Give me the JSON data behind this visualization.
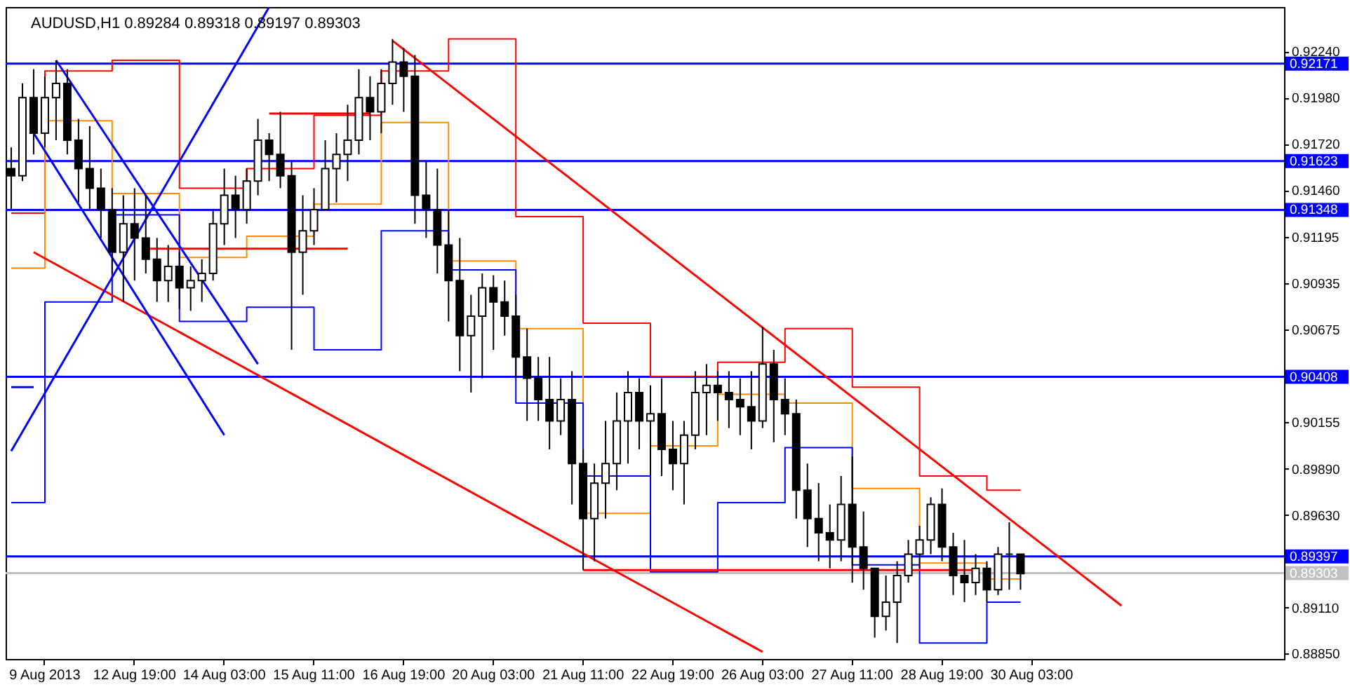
{
  "chart_data": {
    "type": "candlestick",
    "title": "AUDUSD,H1  0.89284 0.89318 0.89197 0.89303",
    "categories": [
      null,
      null,
      null,
      "9 Aug 2013",
      null,
      null,
      null,
      null,
      null,
      null,
      null,
      "12 Aug 19:00",
      null,
      null,
      null,
      null,
      null,
      null,
      null,
      "14 Aug 03:00",
      null,
      null,
      null,
      null,
      null,
      null,
      null,
      "15 Aug 11:00",
      null,
      null,
      null,
      null,
      null,
      null,
      null,
      "16 Aug 19:00",
      null,
      null,
      null,
      null,
      null,
      null,
      null,
      "20 Aug 03:00",
      null,
      null,
      null,
      null,
      null,
      null,
      null,
      "21 Aug 11:00",
      null,
      null,
      null,
      null,
      null,
      null,
      null,
      "22 Aug 19:00",
      null,
      null,
      null,
      null,
      null,
      null,
      null,
      "26 Aug 03:00",
      null,
      null,
      null,
      null,
      null,
      null,
      null,
      "27 Aug 11:00",
      null,
      null,
      null,
      null,
      null,
      null,
      null,
      "28 Aug 19:00",
      null,
      null,
      null,
      null,
      null,
      null,
      null,
      "30 Aug 03:00",
      null,
      null,
      null,
      null,
      null,
      null,
      null,
      null,
      null,
      null,
      null,
      null,
      null,
      null,
      null,
      null,
      null,
      null,
      null,
      null,
      null,
      null
    ],
    "ohlc": [
      [
        0.9158,
        0.917,
        0.9135,
        0.9154
      ],
      [
        0.9154,
        0.9206,
        0.9151,
        0.9198
      ],
      [
        0.9198,
        0.9214,
        0.9166,
        0.9178
      ],
      [
        0.9178,
        0.921,
        0.917,
        0.9198
      ],
      [
        0.9198,
        0.9219,
        0.9174,
        0.9206
      ],
      [
        0.9206,
        0.9214,
        0.9166,
        0.9174
      ],
      [
        0.9174,
        0.9186,
        0.9139,
        0.9158
      ],
      [
        0.9158,
        0.9182,
        0.9135,
        0.9147
      ],
      [
        0.9147,
        0.9158,
        0.9119,
        0.9135
      ],
      [
        0.9135,
        0.9147,
        0.9099,
        0.9111
      ],
      [
        0.9111,
        0.9143,
        0.9083,
        0.9127
      ],
      [
        0.9127,
        0.9147,
        0.9095,
        0.9119
      ],
      [
        0.9119,
        0.9143,
        0.9099,
        0.9107
      ],
      [
        0.9107,
        0.9119,
        0.9083,
        0.9095
      ],
      [
        0.9095,
        0.9115,
        0.9083,
        0.9103
      ],
      [
        0.9103,
        0.9111,
        0.9079,
        0.9091
      ],
      [
        0.9091,
        0.9103,
        0.9078,
        0.9095
      ],
      [
        0.9095,
        0.9107,
        0.9083,
        0.9099
      ],
      [
        0.9099,
        0.9135,
        0.9095,
        0.9127
      ],
      [
        0.9127,
        0.9158,
        0.9115,
        0.9143
      ],
      [
        0.9143,
        0.9154,
        0.9119,
        0.9135
      ],
      [
        0.9135,
        0.9158,
        0.9127,
        0.9151
      ],
      [
        0.9151,
        0.9186,
        0.9143,
        0.9174
      ],
      [
        0.9174,
        0.9178,
        0.9151,
        0.9166
      ],
      [
        0.9166,
        0.919,
        0.9147,
        0.9154
      ],
      [
        0.9154,
        0.9162,
        0.9056,
        0.9111
      ],
      [
        0.9111,
        0.9143,
        0.9087,
        0.9123
      ],
      [
        0.9123,
        0.9147,
        0.9115,
        0.9135
      ],
      [
        0.9135,
        0.9174,
        0.9135,
        0.9158
      ],
      [
        0.9158,
        0.9178,
        0.9139,
        0.9166
      ],
      [
        0.9166,
        0.9194,
        0.9151,
        0.9174
      ],
      [
        0.9174,
        0.9214,
        0.9166,
        0.9198
      ],
      [
        0.9198,
        0.921,
        0.9174,
        0.919
      ],
      [
        0.919,
        0.9214,
        0.9178,
        0.9206
      ],
      [
        0.9206,
        0.9231,
        0.9194,
        0.9218
      ],
      [
        0.9218,
        0.9226,
        0.919,
        0.921
      ],
      [
        0.921,
        0.9222,
        0.9127,
        0.9143
      ],
      [
        0.9143,
        0.9162,
        0.9119,
        0.9135
      ],
      [
        0.9135,
        0.9158,
        0.9099,
        0.9115
      ],
      [
        0.9115,
        0.9135,
        0.9072,
        0.9095
      ],
      [
        0.9095,
        0.9119,
        0.9044,
        0.9064
      ],
      [
        0.9064,
        0.9087,
        0.9032,
        0.9075
      ],
      [
        0.9075,
        0.9099,
        0.904,
        0.9091
      ],
      [
        0.9091,
        0.9098,
        0.9056,
        0.9083
      ],
      [
        0.9083,
        0.9095,
        0.9064,
        0.9075
      ],
      [
        0.9075,
        0.9087,
        0.904,
        0.9052
      ],
      [
        0.9052,
        0.9068,
        0.9016,
        0.904
      ],
      [
        0.904,
        0.9052,
        0.9016,
        0.9028
      ],
      [
        0.9028,
        0.9052,
        0.9,
        0.9016
      ],
      [
        0.9016,
        0.904,
        0.9008,
        0.9028
      ],
      [
        0.9028,
        0.9044,
        0.8969,
        0.8992
      ],
      [
        0.8992,
        0.9,
        0.8932,
        0.8961
      ],
      [
        0.8961,
        0.8992,
        0.8937,
        0.8981
      ],
      [
        0.8981,
        0.9016,
        0.8961,
        0.8992
      ],
      [
        0.8992,
        0.9032,
        0.8977,
        0.9016
      ],
      [
        0.9016,
        0.9044,
        0.8992,
        0.9032
      ],
      [
        0.9032,
        0.904,
        0.9,
        0.9016
      ],
      [
        0.9016,
        0.9036,
        0.8985,
        0.902
      ],
      [
        0.902,
        0.904,
        0.8985,
        0.9
      ],
      [
        0.9,
        0.9016,
        0.8977,
        0.8992
      ],
      [
        0.8992,
        0.9016,
        0.8969,
        0.9008
      ],
      [
        0.9008,
        0.9044,
        0.9,
        0.9032
      ],
      [
        0.9032,
        0.9048,
        0.9008,
        0.9036
      ],
      [
        0.9036,
        0.9044,
        0.9016,
        0.9032
      ],
      [
        0.9032,
        0.9044,
        0.9012,
        0.9028
      ],
      [
        0.9028,
        0.904,
        0.9008,
        0.9024
      ],
      [
        0.9024,
        0.9044,
        0.9,
        0.9016
      ],
      [
        0.9016,
        0.9069,
        0.9012,
        0.9048
      ],
      [
        0.9048,
        0.9056,
        0.9004,
        0.9028
      ],
      [
        0.9028,
        0.904,
        0.9008,
        0.902
      ],
      [
        0.902,
        0.9028,
        0.8961,
        0.8977
      ],
      [
        0.8977,
        0.8992,
        0.8945,
        0.8961
      ],
      [
        0.8961,
        0.8981,
        0.8937,
        0.8953
      ],
      [
        0.8953,
        0.8969,
        0.8933,
        0.8949
      ],
      [
        0.8949,
        0.8985,
        0.8937,
        0.8969
      ],
      [
        0.8969,
        0.8996,
        0.8925,
        0.8945
      ],
      [
        0.8945,
        0.8965,
        0.8921,
        0.8933
      ],
      [
        0.8933,
        0.8933,
        0.8894,
        0.8906
      ],
      [
        0.8906,
        0.8929,
        0.8898,
        0.8914
      ],
      [
        0.8914,
        0.8937,
        0.8891,
        0.8929
      ],
      [
        0.8929,
        0.8949,
        0.8925,
        0.8941
      ],
      [
        0.8941,
        0.8957,
        0.8933,
        0.8949
      ],
      [
        0.8949,
        0.8973,
        0.8941,
        0.8969
      ],
      [
        0.8969,
        0.8978,
        0.8937,
        0.8945
      ],
      [
        0.8945,
        0.8953,
        0.8918,
        0.8929
      ],
      [
        0.8929,
        0.8949,
        0.8914,
        0.8925
      ],
      [
        0.8925,
        0.8941,
        0.8918,
        0.8933
      ],
      [
        0.8933,
        0.8937,
        0.8914,
        0.8921
      ],
      [
        0.8921,
        0.8945,
        0.8918,
        0.8941
      ],
      [
        0.8941,
        0.8959,
        0.8921,
        0.8941
      ],
      [
        0.8941,
        0.8941,
        0.8921,
        0.893
      ],
      null,
      null,
      null,
      null,
      null,
      null,
      null,
      null,
      null,
      null,
      null,
      null,
      null,
      null,
      null,
      null,
      null,
      null,
      null,
      null,
      null,
      null,
      null
    ],
    "series": [
      {
        "type": "step",
        "color": "#ff0000",
        "values": [
          0.9133,
          0.9133,
          0.9133,
          0.9213,
          0.9213,
          0.9213,
          0.9213,
          0.9213,
          0.9213,
          0.9219,
          0.9219,
          0.9219,
          0.9219,
          0.9219,
          0.9219,
          0.9147,
          0.9147,
          0.9147,
          0.9147,
          0.9147,
          0.9147,
          0.9158,
          0.9158,
          0.9158,
          0.9158,
          0.9158,
          0.9158,
          0.9188,
          0.9188,
          0.9188,
          0.9188,
          0.9188,
          0.9188,
          0.9213,
          0.9213,
          0.9213,
          0.9213,
          0.9213,
          0.9213,
          0.9231,
          0.9231,
          0.9231,
          0.9231,
          0.9231,
          0.9231,
          0.9131,
          0.9131,
          0.9131,
          0.9131,
          0.9131,
          0.9131,
          0.9071,
          0.9071,
          0.9071,
          0.9071,
          0.9071,
          0.9071,
          0.9041,
          0.9041,
          0.9041,
          0.9041,
          0.9041,
          0.9041,
          0.9049,
          0.9049,
          0.9049,
          0.9049,
          0.9049,
          0.9049,
          0.9068,
          0.9068,
          0.9068,
          0.9068,
          0.9068,
          0.9068,
          0.9035,
          0.9035,
          0.9035,
          0.9035,
          0.9035,
          0.9035,
          0.8985,
          0.8985,
          0.8985,
          0.8985,
          0.8985,
          0.8985,
          0.8977,
          0.8977,
          0.8977,
          0.8977,
          null,
          null,
          null,
          null,
          null,
          null,
          null,
          null,
          null,
          null,
          null,
          null,
          null,
          null,
          null,
          null,
          null,
          null,
          null,
          null,
          null,
          null,
          null
        ]
      },
      {
        "type": "step",
        "color": "#ff8c00",
        "values": [
          0.9102,
          0.9102,
          0.9102,
          0.9185,
          0.9185,
          0.9185,
          0.9185,
          0.9185,
          0.9185,
          0.9144,
          0.9144,
          0.9144,
          0.9144,
          0.9144,
          0.9144,
          0.9108,
          0.9108,
          0.9108,
          0.9108,
          0.9108,
          0.9108,
          0.912,
          0.912,
          0.912,
          0.912,
          0.912,
          0.912,
          0.9138,
          0.9138,
          0.9138,
          0.9138,
          0.9138,
          0.9138,
          0.9184,
          0.9184,
          0.9184,
          0.9184,
          0.9184,
          0.9184,
          0.9106,
          0.9106,
          0.9106,
          0.9106,
          0.9106,
          0.9106,
          0.9068,
          0.9068,
          0.9068,
          0.9068,
          0.9068,
          0.9068,
          0.8964,
          0.8964,
          0.8964,
          0.8964,
          0.8964,
          0.8964,
          0.9002,
          0.9002,
          0.9002,
          0.9002,
          0.9002,
          0.9002,
          0.9031,
          0.9031,
          0.9031,
          0.9031,
          0.9031,
          0.9031,
          0.9026,
          0.9026,
          0.9026,
          0.9026,
          0.9026,
          0.9026,
          0.8978,
          0.8978,
          0.8978,
          0.8978,
          0.8978,
          0.8978,
          0.8936,
          0.8936,
          0.8936,
          0.8936,
          0.8936,
          0.8936,
          0.8927,
          0.8927,
          0.8927,
          0.8927,
          null,
          null,
          null,
          null,
          null,
          null,
          null,
          null,
          null,
          null,
          null,
          null,
          null,
          null,
          null,
          null,
          null,
          null,
          null,
          null,
          null,
          null,
          null
        ]
      },
      {
        "type": "step",
        "color": "#0000ff",
        "values": [
          0.897,
          0.897,
          0.897,
          0.9083,
          0.9083,
          0.9083,
          0.9083,
          0.9083,
          0.9083,
          0.9132,
          0.9132,
          0.9132,
          0.9132,
          0.9132,
          0.9132,
          0.9072,
          0.9072,
          0.9072,
          0.9072,
          0.9072,
          0.9072,
          0.908,
          0.908,
          0.908,
          0.908,
          0.908,
          0.908,
          0.9056,
          0.9056,
          0.9056,
          0.9056,
          0.9056,
          0.9056,
          0.9123,
          0.9123,
          0.9123,
          0.9123,
          0.9123,
          0.9123,
          0.9101,
          0.9101,
          0.9101,
          0.9101,
          0.9101,
          0.9101,
          0.9026,
          0.9026,
          0.9026,
          0.9026,
          0.9026,
          0.9026,
          0.8985,
          0.8985,
          0.8985,
          0.8985,
          0.8985,
          0.8985,
          0.8931,
          0.8931,
          0.8931,
          0.8931,
          0.8931,
          0.8931,
          0.897,
          0.897,
          0.897,
          0.897,
          0.897,
          0.897,
          0.9001,
          0.9001,
          0.9001,
          0.9001,
          0.9001,
          0.9001,
          0.8935,
          0.8935,
          0.8935,
          0.8935,
          0.8935,
          0.8935,
          0.8891,
          0.8891,
          0.8891,
          0.8891,
          0.8891,
          0.8891,
          0.8914,
          0.8914,
          0.8914,
          0.8914,
          null,
          null,
          null,
          null,
          null,
          null,
          null,
          null,
          null,
          null,
          null,
          null,
          null,
          null,
          null,
          null,
          null,
          null,
          null,
          null,
          null,
          null,
          null
        ]
      },
      {
        "type": "line",
        "color": "#ff0000",
        "values": [
          null,
          null,
          null,
          null,
          null,
          null,
          null,
          null,
          null,
          null,
          null,
          null,
          null,
          null,
          null,
          null,
          null,
          null,
          null,
          null,
          null,
          null,
          null,
          null,
          null,
          null,
          null,
          null,
          null,
          null,
          null,
          null,
          null,
          null,
          0.923,
          null,
          null,
          null,
          null,
          null,
          null,
          null,
          null,
          null,
          null,
          null,
          null,
          null,
          null,
          null,
          null,
          null,
          null,
          null,
          null,
          null,
          null,
          null,
          null,
          null,
          null,
          null,
          null,
          null,
          null,
          null,
          null,
          null,
          null,
          null,
          null,
          null,
          null,
          null,
          null,
          null,
          null,
          null,
          null,
          null,
          null,
          null,
          null,
          null,
          null,
          null,
          null,
          null,
          null,
          null,
          null,
          null,
          null,
          null,
          null,
          null,
          null,
          null,
          null,
          0.8912,
          null,
          null,
          null,
          null,
          null,
          null,
          null,
          null,
          null,
          null,
          null,
          null,
          null,
          null
        ]
      },
      {
        "type": "line",
        "color": "#ff0000",
        "values": [
          null,
          null,
          0.9111,
          null,
          null,
          null,
          null,
          null,
          null,
          null,
          null,
          null,
          null,
          null,
          null,
          null,
          null,
          null,
          null,
          null,
          null,
          null,
          null,
          null,
          null,
          null,
          null,
          null,
          null,
          null,
          null,
          null,
          null,
          null,
          null,
          null,
          null,
          null,
          null,
          null,
          null,
          null,
          null,
          null,
          null,
          null,
          null,
          null,
          null,
          null,
          null,
          null,
          null,
          null,
          null,
          null,
          null,
          null,
          null,
          null,
          null,
          null,
          null,
          null,
          null,
          null,
          null,
          0.8886,
          null,
          null,
          null,
          null,
          null,
          null,
          null,
          null,
          null,
          null,
          null,
          null,
          null,
          null,
          null,
          null,
          null,
          null,
          null,
          null,
          null,
          null,
          null,
          null,
          null,
          null,
          null,
          null,
          null,
          null,
          null,
          null,
          null,
          null,
          null,
          null,
          null,
          null,
          null,
          null,
          null,
          null,
          null,
          null,
          null,
          null
        ]
      },
      {
        "type": "line",
        "color": "#ff0000",
        "values": [
          null,
          null,
          null,
          null,
          null,
          null,
          null,
          null,
          null,
          null,
          null,
          null,
          null,
          null,
          null,
          null,
          null,
          null,
          null,
          null,
          null,
          null,
          null,
          null,
          null,
          null,
          null,
          null,
          null,
          null,
          null,
          null,
          null,
          null,
          null,
          null,
          null,
          null,
          null,
          null,
          null,
          null,
          null,
          null,
          null,
          null,
          null,
          null,
          null,
          null,
          null,
          0.8932,
          null,
          null,
          null,
          null,
          null,
          null,
          null,
          null,
          null,
          null,
          null,
          null,
          null,
          null,
          null,
          null,
          null,
          null,
          null,
          null,
          null,
          null,
          null,
          null,
          null,
          null,
          null,
          null,
          null,
          null,
          null,
          null,
          null,
          null,
          0.8932,
          null,
          null,
          null,
          null,
          null,
          null,
          null,
          null,
          null,
          null,
          null,
          null,
          null,
          null,
          null,
          null,
          null,
          null,
          null,
          null,
          null,
          null,
          null,
          null,
          null,
          null,
          null
        ]
      },
      {
        "type": "line",
        "color": "#ff0000",
        "values": [
          null,
          null,
          null,
          null,
          null,
          null,
          null,
          null,
          null,
          null,
          null,
          null,
          null,
          null,
          null,
          null,
          null,
          null,
          null,
          null,
          null,
          null,
          null,
          0.9189,
          null,
          null,
          null,
          null,
          null,
          null,
          null,
          null,
          0.9189,
          null,
          null,
          null,
          null,
          null,
          null,
          null,
          null,
          null,
          null,
          null,
          null,
          null,
          null,
          null,
          null,
          null,
          null,
          null,
          null,
          null,
          null,
          null,
          null,
          null,
          null,
          null,
          null,
          null,
          null,
          null,
          null,
          null,
          null,
          null,
          null,
          null,
          null,
          null,
          null,
          null,
          null,
          null,
          null,
          null,
          null,
          null,
          null,
          null,
          null,
          null,
          null,
          null,
          null,
          null,
          null,
          null,
          null,
          null,
          null,
          null,
          null,
          null,
          null,
          null,
          null,
          null,
          null,
          null,
          null,
          null,
          null,
          null,
          null,
          null,
          null,
          null,
          null,
          null,
          null,
          null
        ]
      },
      {
        "type": "line",
        "color": "#ff0000",
        "values": [
          null,
          null,
          null,
          null,
          null,
          null,
          null,
          null,
          null,
          null,
          null,
          null,
          0.9113,
          null,
          null,
          null,
          null,
          null,
          null,
          null,
          null,
          null,
          null,
          null,
          null,
          null,
          null,
          null,
          null,
          null,
          0.9113,
          null,
          null,
          null,
          null,
          null,
          null,
          null,
          null,
          null,
          null,
          null,
          null,
          null,
          null,
          null,
          null,
          null,
          null,
          null,
          null,
          null,
          null,
          null,
          null,
          null,
          null,
          null,
          null,
          null,
          null,
          null,
          null,
          null,
          null,
          null,
          null,
          null,
          null,
          null,
          null,
          null,
          null,
          null,
          null,
          null,
          null,
          null,
          null,
          null,
          null,
          null,
          null,
          null,
          null,
          null,
          null,
          null,
          null,
          null,
          null,
          null,
          null,
          null,
          null,
          null,
          null,
          null,
          null,
          null,
          null,
          null,
          null,
          null,
          null,
          null,
          null,
          null,
          null,
          null,
          null,
          null,
          null,
          null
        ]
      },
      {
        "type": "line",
        "color": "#0000ff",
        "values": [
          0.8999,
          null,
          null,
          null,
          null,
          null,
          null,
          null,
          null,
          null,
          null,
          null,
          null,
          null,
          null,
          null,
          null,
          null,
          null,
          null,
          null,
          null,
          null,
          0.9249,
          null,
          null,
          null,
          null,
          null,
          null,
          null,
          null,
          null,
          null,
          null,
          null,
          null,
          null,
          null,
          null,
          null,
          null,
          null,
          null,
          null,
          null,
          null,
          null,
          null,
          null,
          null,
          null,
          null,
          null,
          null,
          null,
          null,
          null,
          null,
          null,
          null,
          null,
          null,
          null,
          null,
          null,
          null,
          null,
          null,
          null,
          null,
          null,
          null,
          null,
          null,
          null,
          null,
          null,
          null,
          null,
          null,
          null,
          null,
          null,
          null,
          null,
          null,
          null,
          null,
          null,
          null,
          null,
          null,
          null,
          null,
          null,
          null,
          null,
          null,
          null,
          null,
          null,
          null,
          null,
          null,
          null,
          null,
          null,
          null,
          null,
          null,
          null,
          null,
          null
        ]
      },
      {
        "type": "line",
        "color": "#0000ff",
        "values": [
          null,
          null,
          0.9178,
          null,
          null,
          null,
          null,
          null,
          null,
          null,
          null,
          null,
          null,
          null,
          null,
          null,
          null,
          null,
          null,
          0.9008,
          null,
          null,
          null,
          null,
          null,
          null,
          null,
          null,
          null,
          null,
          null,
          null,
          null,
          null,
          null,
          null,
          null,
          null,
          null,
          null,
          null,
          null,
          null,
          null,
          null,
          null,
          null,
          null,
          null,
          null,
          null,
          null,
          null,
          null,
          null,
          null,
          null,
          null,
          null,
          null,
          null,
          null,
          null,
          null,
          null,
          null,
          null,
          null,
          null,
          null,
          null,
          null,
          null,
          null,
          null,
          null,
          null,
          null,
          null,
          null,
          null,
          null,
          null,
          null,
          null,
          null,
          null,
          null,
          null,
          null,
          null,
          null,
          null,
          null,
          null,
          null,
          null,
          null,
          null,
          null,
          null,
          null,
          null,
          null,
          null,
          null,
          null,
          null,
          null,
          null,
          null,
          null,
          null,
          null
        ]
      },
      {
        "type": "line",
        "color": "#0000ff",
        "values": [
          null,
          null,
          null,
          null,
          0.9219,
          null,
          null,
          null,
          null,
          null,
          null,
          null,
          null,
          null,
          null,
          null,
          null,
          null,
          null,
          null,
          null,
          null,
          0.9048,
          null,
          null,
          null,
          null,
          null,
          null,
          null,
          null,
          null,
          null,
          null,
          null,
          null,
          null,
          null,
          null,
          null,
          null,
          null,
          null,
          null,
          null,
          null,
          null,
          null,
          null,
          null,
          null,
          null,
          null,
          null,
          null,
          null,
          null,
          null,
          null,
          null,
          null,
          null,
          null,
          null,
          null,
          null,
          null,
          null,
          null,
          null,
          null,
          null,
          null,
          null,
          null,
          null,
          null,
          null,
          null,
          null,
          null,
          null,
          null,
          null,
          null,
          null,
          null,
          null,
          null,
          null,
          null,
          null,
          null,
          null,
          null,
          null,
          null,
          null,
          null,
          null,
          null,
          null,
          null,
          null,
          null,
          null,
          null,
          null,
          null,
          null,
          null,
          null,
          null,
          null
        ]
      },
      {
        "type": "line",
        "color": "#0000ff",
        "values": [
          0.9035,
          null,
          0.9035,
          null,
          null,
          null,
          null,
          null,
          null,
          null,
          null,
          null,
          null,
          null,
          null,
          null,
          null,
          null,
          null,
          null,
          null,
          null,
          null,
          null,
          null,
          null,
          null,
          null,
          null,
          null,
          null,
          null,
          null,
          null,
          null,
          null,
          null,
          null,
          null,
          null,
          null,
          null,
          null,
          null,
          null,
          null,
          null,
          null,
          null,
          null,
          null,
          null,
          null,
          null,
          null,
          null,
          null,
          null,
          null,
          null,
          null,
          null,
          null,
          null,
          null,
          null,
          null,
          null,
          null,
          null,
          null,
          null,
          null,
          null,
          null,
          null,
          null,
          null,
          null,
          null,
          null,
          null,
          null,
          null,
          null,
          null,
          null,
          null,
          null,
          null,
          null,
          null,
          null,
          null,
          null,
          null,
          null,
          null,
          null,
          null,
          null,
          null,
          null,
          null,
          null,
          null,
          null,
          null,
          null,
          null,
          null,
          null,
          null,
          null
        ]
      }
    ],
    "ylim": [
      0.8882,
      0.9249
    ],
    "yticks": [
      {
        "value": 0.9224,
        "label": "0.92240"
      },
      {
        "value": 0.9198,
        "label": "0.91980"
      },
      {
        "value": 0.9172,
        "label": "0.91720"
      },
      {
        "value": 0.9146,
        "label": "0.91460"
      },
      0.91195,
      0.90935,
      0.90675,
      0.90155,
      {
        "value": 0.8989,
        "label": "0.89890"
      },
      {
        "value": 0.8963,
        "label": "0.89630"
      },
      {
        "value": 0.8911,
        "label": "0.89110"
      },
      {
        "value": 0.8885,
        "label": "0.88850"
      }
    ],
    "ref_lines": [
      {
        "axis": "y",
        "value": 0.92171,
        "label": "0.92171",
        "color": "#0000ff"
      },
      {
        "axis": "y",
        "value": 0.91623,
        "label": "0.91623",
        "color": "#0000ff"
      },
      {
        "axis": "y",
        "value": 0.91348,
        "label": "0.91348",
        "color": "#0000ff"
      },
      {
        "axis": "y",
        "value": 0.90408,
        "label": "0.90408",
        "color": "#0000ff"
      },
      {
        "axis": "y",
        "value": 0.89397,
        "label": "0.89397",
        "color": "#0000ff"
      },
      {
        "axis": "y",
        "value": 0.89303,
        "label": "0.89303",
        "color": "#c0c0c0"
      }
    ]
  }
}
